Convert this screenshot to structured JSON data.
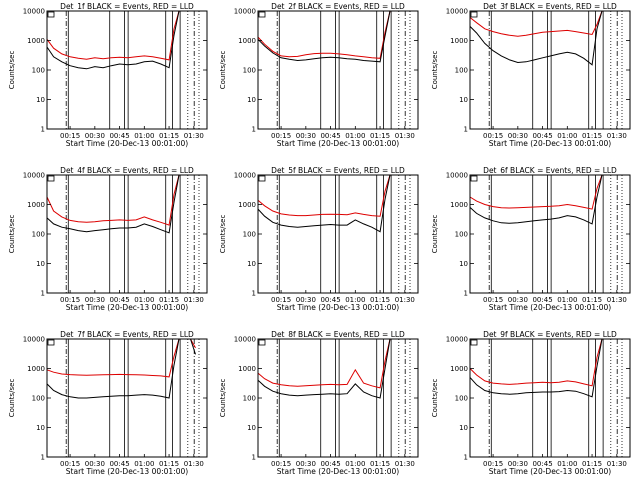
{
  "figure": {
    "xlabel_prefix": "Start Time (",
    "xlabel_date": "20-Dec-13 00:01:00",
    "xlabel_suffix": ")",
    "ylabel": "Counts/sec",
    "xticks": [
      "00:15",
      "00:30",
      "00:45",
      "01:00",
      "01:15",
      "01:30"
    ],
    "yticks": [
      "1",
      "10",
      "100",
      "1000",
      "10000"
    ],
    "colors": {
      "black_series": "#000000",
      "red_series": "#dd0000",
      "frame": "#000000"
    }
  },
  "chart_data": [
    {
      "type": "line",
      "title": "Det_1f BLACK = Events, RED = LLD",
      "x": [
        "00:01",
        "00:05",
        "00:10",
        "00:15",
        "00:20",
        "00:25",
        "00:30",
        "00:35",
        "00:40",
        "00:45",
        "00:50",
        "00:55",
        "01:00",
        "01:05",
        "01:10",
        "01:15",
        "01:18",
        "01:21",
        "01:23",
        "01:25",
        "01:28",
        "01:31"
      ],
      "series": [
        {
          "name": "Events",
          "color": "#000000",
          "values": [
            600,
            280,
            190,
            140,
            120,
            110,
            130,
            120,
            140,
            160,
            150,
            160,
            190,
            200,
            160,
            120,
            1500,
            10000,
            10000,
            10000,
            10000,
            null
          ]
        },
        {
          "name": "LLD",
          "color": "#dd0000",
          "values": [
            1100,
            550,
            350,
            280,
            250,
            230,
            260,
            240,
            260,
            270,
            260,
            280,
            300,
            280,
            250,
            220,
            2500,
            10000,
            10000,
            10000,
            10000,
            null
          ]
        }
      ],
      "xlim": [
        "00:01",
        "01:38"
      ],
      "ylim": [
        1,
        10000
      ],
      "yscale": "log"
    },
    {
      "type": "line",
      "title": "Det_2f BLACK = Events, RED = LLD",
      "x": [
        "00:01",
        "00:05",
        "00:10",
        "00:15",
        "00:20",
        "00:25",
        "00:30",
        "00:35",
        "00:40",
        "00:45",
        "00:50",
        "00:55",
        "01:00",
        "01:05",
        "01:10",
        "01:15",
        "01:18",
        "01:21",
        "01:23",
        "01:25",
        "01:28",
        "01:31"
      ],
      "series": [
        {
          "name": "Events",
          "color": "#000000",
          "values": [
            1100,
            650,
            380,
            260,
            230,
            210,
            220,
            240,
            260,
            270,
            260,
            240,
            230,
            210,
            200,
            190,
            1400,
            10000,
            10000,
            10000,
            10000,
            null
          ]
        },
        {
          "name": "LLD",
          "color": "#dd0000",
          "values": [
            1300,
            750,
            430,
            300,
            280,
            290,
            330,
            360,
            370,
            370,
            350,
            330,
            300,
            280,
            260,
            250,
            1900,
            10000,
            10000,
            10000,
            10000,
            null
          ]
        }
      ],
      "xlim": [
        "00:01",
        "01:38"
      ],
      "ylim": [
        1,
        10000
      ],
      "yscale": "log"
    },
    {
      "type": "line",
      "title": "Det_3f BLACK = Events, RED = LLD",
      "x": [
        "00:01",
        "00:05",
        "00:10",
        "00:15",
        "00:20",
        "00:25",
        "00:30",
        "00:35",
        "00:40",
        "00:45",
        "00:50",
        "00:55",
        "01:00",
        "01:05",
        "01:10",
        "01:15",
        "01:18",
        "01:21",
        "01:23",
        "01:25",
        "01:28",
        "01:31"
      ],
      "series": [
        {
          "name": "Events",
          "color": "#000000",
          "values": [
            3000,
            1800,
            800,
            450,
            300,
            220,
            180,
            190,
            220,
            260,
            300,
            350,
            400,
            350,
            250,
            150,
            2500,
            10000,
            10000,
            10000,
            10000,
            null
          ]
        },
        {
          "name": "LLD",
          "color": "#dd0000",
          "values": [
            6000,
            4000,
            2500,
            2000,
            1700,
            1500,
            1400,
            1500,
            1700,
            1900,
            2000,
            2100,
            2200,
            2000,
            1800,
            1600,
            3500,
            10000,
            10000,
            10000,
            10000,
            null
          ]
        }
      ],
      "xlim": [
        "00:01",
        "01:38"
      ],
      "ylim": [
        1,
        10000
      ],
      "yscale": "log"
    },
    {
      "type": "line",
      "title": "Det_4f BLACK = Events, RED = LLD",
      "x": [
        "00:01",
        "00:05",
        "00:10",
        "00:15",
        "00:20",
        "00:25",
        "00:30",
        "00:35",
        "00:40",
        "00:45",
        "00:50",
        "00:55",
        "01:00",
        "01:05",
        "01:10",
        "01:15",
        "01:18",
        "01:21",
        "01:23",
        "01:25",
        "01:28",
        "01:31"
      ],
      "series": [
        {
          "name": "Events",
          "color": "#000000",
          "values": [
            350,
            220,
            170,
            150,
            130,
            120,
            130,
            140,
            150,
            160,
            160,
            170,
            220,
            180,
            140,
            110,
            1200,
            10000,
            10000,
            10000,
            10000,
            null
          ]
        },
        {
          "name": "LLD",
          "color": "#dd0000",
          "values": [
            1800,
            600,
            380,
            290,
            260,
            250,
            260,
            280,
            290,
            300,
            290,
            300,
            380,
            300,
            250,
            200,
            2200,
            10000,
            10000,
            10000,
            10000,
            null
          ]
        }
      ],
      "xlim": [
        "00:01",
        "01:38"
      ],
      "ylim": [
        1,
        10000
      ],
      "yscale": "log"
    },
    {
      "type": "line",
      "title": "Det_5f BLACK = Events, RED = LLD",
      "x": [
        "00:01",
        "00:05",
        "00:10",
        "00:15",
        "00:20",
        "00:25",
        "00:30",
        "00:35",
        "00:40",
        "00:45",
        "00:50",
        "00:55",
        "01:00",
        "01:05",
        "01:10",
        "01:15",
        "01:18",
        "01:21",
        "01:23",
        "01:25",
        "01:28",
        "01:31"
      ],
      "series": [
        {
          "name": "Events",
          "color": "#000000",
          "values": [
            700,
            400,
            250,
            200,
            180,
            170,
            180,
            190,
            200,
            210,
            200,
            200,
            300,
            220,
            170,
            120,
            1500,
            10000,
            10000,
            10000,
            10000,
            null
          ]
        },
        {
          "name": "LLD",
          "color": "#dd0000",
          "values": [
            1400,
            900,
            600,
            480,
            440,
            420,
            420,
            440,
            460,
            470,
            460,
            450,
            520,
            460,
            420,
            400,
            2800,
            10000,
            10000,
            10000,
            10000,
            null
          ]
        }
      ],
      "xlim": [
        "00:01",
        "01:38"
      ],
      "ylim": [
        1,
        10000
      ],
      "yscale": "log"
    },
    {
      "type": "line",
      "title": "Det_6f BLACK = Events, RED = LLD",
      "x": [
        "00:01",
        "00:05",
        "00:10",
        "00:15",
        "00:20",
        "00:25",
        "00:30",
        "00:35",
        "00:40",
        "00:45",
        "00:50",
        "00:55",
        "01:00",
        "01:05",
        "01:10",
        "01:15",
        "01:18",
        "01:21",
        "01:23",
        "01:25",
        "01:28",
        "01:31"
      ],
      "series": [
        {
          "name": "Events",
          "color": "#000000",
          "values": [
            800,
            500,
            350,
            280,
            240,
            230,
            240,
            260,
            280,
            300,
            320,
            350,
            420,
            380,
            300,
            220,
            1800,
            10000,
            10000,
            10000,
            10000,
            null
          ]
        },
        {
          "name": "LLD",
          "color": "#dd0000",
          "values": [
            1800,
            1300,
            1000,
            850,
            780,
            760,
            780,
            800,
            820,
            850,
            870,
            900,
            1000,
            900,
            800,
            700,
            3500,
            10000,
            10000,
            10000,
            10000,
            null
          ]
        }
      ],
      "xlim": [
        "00:01",
        "01:38"
      ],
      "ylim": [
        1,
        10000
      ],
      "yscale": "log"
    },
    {
      "type": "line",
      "title": "Det_7f BLACK = Events, RED = LLD",
      "x": [
        "00:01",
        "00:05",
        "00:10",
        "00:15",
        "00:20",
        "00:25",
        "00:30",
        "00:35",
        "00:40",
        "00:45",
        "00:50",
        "00:55",
        "01:00",
        "01:05",
        "01:10",
        "01:15",
        "01:18",
        "01:21",
        "01:23",
        "01:25",
        "01:28",
        "01:31"
      ],
      "series": [
        {
          "name": "Events",
          "color": "#000000",
          "values": [
            300,
            180,
            130,
            110,
            100,
            100,
            105,
            110,
            115,
            120,
            120,
            125,
            130,
            125,
            115,
            100,
            1300,
            10000,
            10000,
            10000,
            10000,
            3000
          ]
        },
        {
          "name": "LLD",
          "color": "#dd0000",
          "values": [
            900,
            750,
            650,
            620,
            600,
            590,
            600,
            610,
            620,
            630,
            620,
            610,
            600,
            580,
            560,
            520,
            2600,
            10000,
            10000,
            10000,
            10000,
            5000
          ]
        }
      ],
      "xlim": [
        "00:01",
        "01:38"
      ],
      "ylim": [
        1,
        10000
      ],
      "yscale": "log"
    },
    {
      "type": "line",
      "title": "Det_8f BLACK = Events, RED = LLD",
      "x": [
        "00:01",
        "00:05",
        "00:10",
        "00:15",
        "00:20",
        "00:25",
        "00:30",
        "00:35",
        "00:40",
        "00:45",
        "00:50",
        "00:55",
        "01:00",
        "01:05",
        "01:10",
        "01:15",
        "01:18",
        "01:21",
        "01:23",
        "01:25",
        "01:28",
        "01:31"
      ],
      "series": [
        {
          "name": "Events",
          "color": "#000000",
          "values": [
            400,
            250,
            170,
            140,
            125,
            120,
            125,
            130,
            135,
            140,
            135,
            140,
            300,
            160,
            120,
            100,
            1000,
            10000,
            10000,
            10000,
            10000,
            null
          ]
        },
        {
          "name": "LLD",
          "color": "#dd0000",
          "values": [
            700,
            450,
            320,
            280,
            260,
            250,
            260,
            270,
            280,
            290,
            280,
            290,
            900,
            320,
            260,
            220,
            1800,
            10000,
            10000,
            10000,
            10000,
            null
          ]
        }
      ],
      "xlim": [
        "00:01",
        "01:38"
      ],
      "ylim": [
        1,
        10000
      ],
      "yscale": "log"
    },
    {
      "type": "line",
      "title": "Det_9f BLACK = Events, RED = LLD",
      "x": [
        "00:01",
        "00:05",
        "00:10",
        "00:15",
        "00:20",
        "00:25",
        "00:30",
        "00:35",
        "00:40",
        "00:45",
        "00:50",
        "00:55",
        "01:00",
        "01:05",
        "01:10",
        "01:15",
        "01:18",
        "01:21",
        "01:23",
        "01:25",
        "01:28",
        "01:31"
      ],
      "series": [
        {
          "name": "Events",
          "color": "#000000",
          "values": [
            500,
            280,
            180,
            150,
            140,
            135,
            140,
            150,
            155,
            160,
            160,
            165,
            180,
            170,
            140,
            110,
            1200,
            10000,
            10000,
            10000,
            10000,
            null
          ]
        },
        {
          "name": "LLD",
          "color": "#dd0000",
          "values": [
            1000,
            600,
            380,
            320,
            300,
            290,
            300,
            320,
            330,
            340,
            330,
            340,
            380,
            350,
            300,
            260,
            2400,
            10000,
            10000,
            10000,
            10000,
            null
          ]
        }
      ],
      "xlim": [
        "00:01",
        "01:38"
      ],
      "ylim": [
        1,
        10000
      ],
      "yscale": "log"
    }
  ]
}
